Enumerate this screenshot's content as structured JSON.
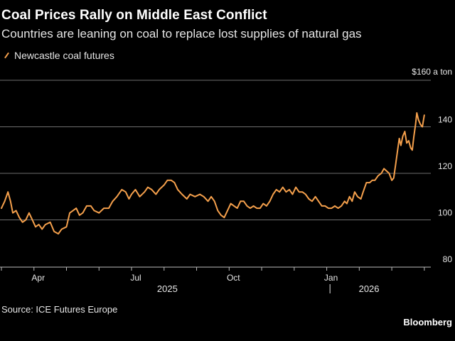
{
  "header": {
    "title": "Coal Prices Rally on Middle East Conflict",
    "subtitle": "Countries are leaning on coal to replace lost supplies of natural gas"
  },
  "footer": {
    "source": "Source: ICE Futures Europe",
    "brand": "Bloomberg"
  },
  "colors": {
    "background": "#000000",
    "series": "#f5a04c",
    "grid": "#6e6e6e",
    "text": "#e6e6e6"
  },
  "chart_data": {
    "type": "line",
    "title": "Coal Prices Rally on Middle East Conflict",
    "ylabel": "$160 a ton",
    "ylim": [
      80,
      160
    ],
    "yticks": [
      80,
      100,
      120,
      140,
      160
    ],
    "ytick_labels": [
      "80",
      "100",
      "120",
      "140",
      "$160 a ton"
    ],
    "grid": true,
    "legend": [
      "Newcastle coal futures"
    ],
    "xlim": [
      0,
      13.2
    ],
    "xticks": [
      {
        "x": 1.0,
        "label": "Apr"
      },
      {
        "x": 4.0,
        "label": "Jul"
      },
      {
        "x": 7.0,
        "label": "Oct"
      },
      {
        "x": 10.0,
        "label": "Jan"
      }
    ],
    "year_labels": [
      {
        "x": 5.1,
        "label": "2025"
      },
      {
        "x": 11.3,
        "label": "2026"
      }
    ],
    "year_separator_x": 10.1,
    "series": [
      {
        "name": "Newcastle coal futures",
        "points": [
          [
            0.0,
            105
          ],
          [
            0.1,
            108
          ],
          [
            0.2,
            112
          ],
          [
            0.28,
            108
          ],
          [
            0.35,
            103
          ],
          [
            0.45,
            104
          ],
          [
            0.55,
            101
          ],
          [
            0.65,
            99
          ],
          [
            0.75,
            100
          ],
          [
            0.85,
            103
          ],
          [
            0.95,
            100
          ],
          [
            1.05,
            97
          ],
          [
            1.15,
            98
          ],
          [
            1.25,
            96
          ],
          [
            1.35,
            98
          ],
          [
            1.5,
            99
          ],
          [
            1.62,
            95
          ],
          [
            1.75,
            94
          ],
          [
            1.85,
            96
          ],
          [
            2.0,
            97
          ],
          [
            2.1,
            103
          ],
          [
            2.2,
            104
          ],
          [
            2.3,
            105
          ],
          [
            2.4,
            102
          ],
          [
            2.5,
            103
          ],
          [
            2.62,
            106
          ],
          [
            2.75,
            106
          ],
          [
            2.85,
            104
          ],
          [
            3.0,
            103
          ],
          [
            3.15,
            105
          ],
          [
            3.3,
            105
          ],
          [
            3.42,
            108
          ],
          [
            3.55,
            110
          ],
          [
            3.7,
            113
          ],
          [
            3.82,
            112
          ],
          [
            3.92,
            109
          ],
          [
            4.0,
            111
          ],
          [
            4.12,
            113
          ],
          [
            4.25,
            110
          ],
          [
            4.4,
            112
          ],
          [
            4.5,
            114
          ],
          [
            4.62,
            113
          ],
          [
            4.75,
            111
          ],
          [
            4.85,
            113
          ],
          [
            5.0,
            115
          ],
          [
            5.1,
            117
          ],
          [
            5.22,
            117
          ],
          [
            5.32,
            116
          ],
          [
            5.42,
            113
          ],
          [
            5.55,
            111
          ],
          [
            5.7,
            109
          ],
          [
            5.8,
            111
          ],
          [
            5.95,
            110
          ],
          [
            6.1,
            111
          ],
          [
            6.22,
            110
          ],
          [
            6.35,
            108
          ],
          [
            6.45,
            110
          ],
          [
            6.55,
            108
          ],
          [
            6.65,
            104
          ],
          [
            6.75,
            102
          ],
          [
            6.85,
            101
          ],
          [
            6.95,
            104
          ],
          [
            7.05,
            107
          ],
          [
            7.15,
            106
          ],
          [
            7.25,
            105
          ],
          [
            7.35,
            108
          ],
          [
            7.45,
            108
          ],
          [
            7.55,
            106
          ],
          [
            7.65,
            105
          ],
          [
            7.75,
            106
          ],
          [
            7.85,
            105
          ],
          [
            7.95,
            105
          ],
          [
            8.05,
            107
          ],
          [
            8.15,
            106
          ],
          [
            8.25,
            108
          ],
          [
            8.35,
            111
          ],
          [
            8.45,
            113
          ],
          [
            8.55,
            112
          ],
          [
            8.65,
            114
          ],
          [
            8.75,
            112
          ],
          [
            8.85,
            113
          ],
          [
            8.95,
            111
          ],
          [
            9.05,
            114
          ],
          [
            9.15,
            112
          ],
          [
            9.25,
            112
          ],
          [
            9.35,
            111
          ],
          [
            9.45,
            109
          ],
          [
            9.55,
            108
          ],
          [
            9.65,
            110
          ],
          [
            9.75,
            108
          ],
          [
            9.85,
            106
          ],
          [
            9.95,
            106
          ],
          [
            10.05,
            105
          ],
          [
            10.15,
            105
          ],
          [
            10.25,
            106
          ],
          [
            10.35,
            105
          ],
          [
            10.45,
            106
          ],
          [
            10.55,
            108
          ],
          [
            10.62,
            107
          ],
          [
            10.7,
            110
          ],
          [
            10.78,
            108
          ],
          [
            10.86,
            112
          ],
          [
            10.95,
            110
          ],
          [
            11.05,
            109
          ],
          [
            11.12,
            112
          ],
          [
            11.22,
            116
          ],
          [
            11.32,
            116
          ],
          [
            11.4,
            117
          ],
          [
            11.48,
            117
          ],
          [
            11.58,
            119
          ],
          [
            11.68,
            120
          ],
          [
            11.76,
            122
          ],
          [
            11.84,
            121
          ],
          [
            11.92,
            120
          ],
          [
            12.0,
            117
          ],
          [
            12.06,
            118
          ],
          [
            12.12,
            124
          ],
          [
            12.18,
            130
          ],
          [
            12.23,
            135
          ],
          [
            12.28,
            132
          ],
          [
            12.34,
            136
          ],
          [
            12.4,
            138
          ],
          [
            12.46,
            133
          ],
          [
            12.52,
            134
          ],
          [
            12.58,
            131
          ],
          [
            12.63,
            130
          ],
          [
            12.68,
            136
          ],
          [
            12.73,
            141
          ],
          [
            12.77,
            146
          ],
          [
            12.82,
            143
          ],
          [
            12.88,
            141
          ],
          [
            12.94,
            140
          ],
          [
            13.0,
            145
          ]
        ]
      }
    ]
  }
}
